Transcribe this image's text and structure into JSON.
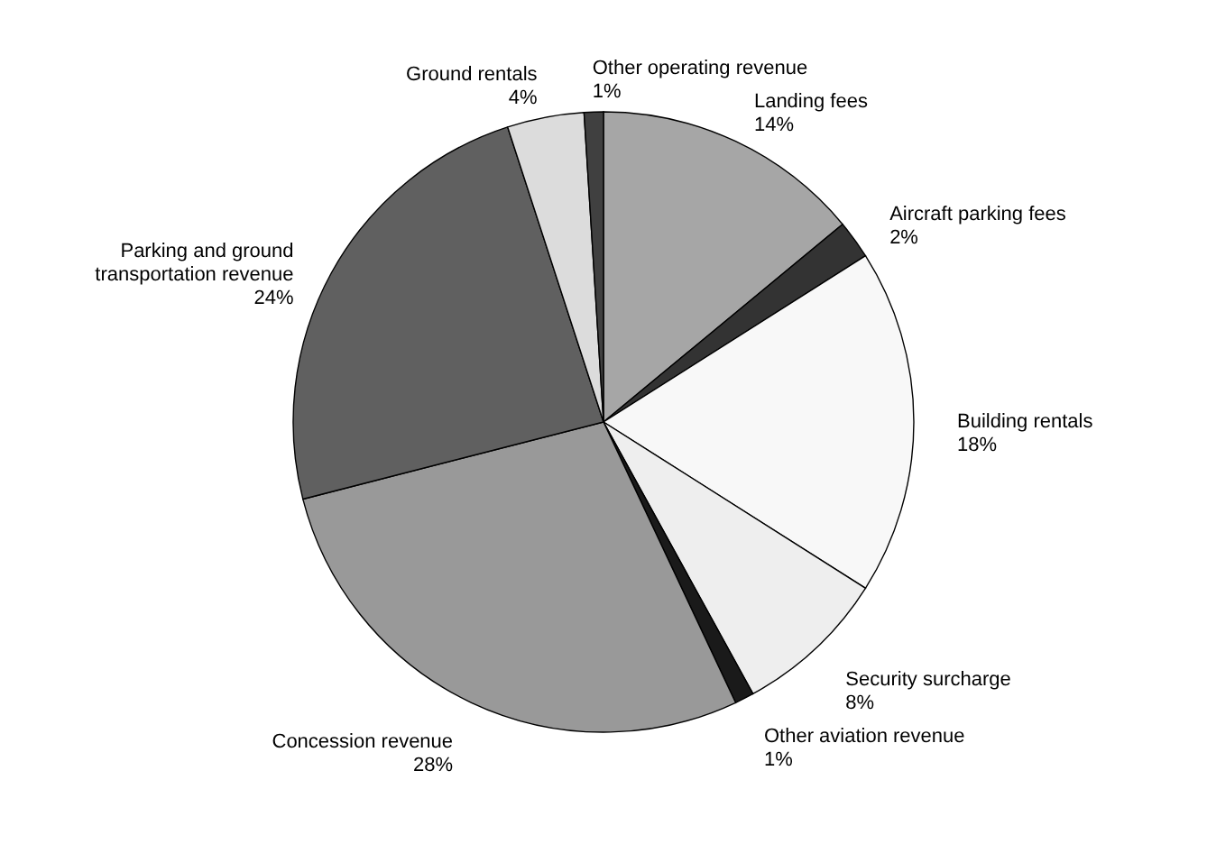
{
  "chart_data": {
    "type": "pie",
    "categories": [
      "Landing fees",
      "Aircraft parking fees",
      "Building rentals",
      "Security surcharge",
      "Other aviation revenue",
      "Concession revenue",
      "Parking and ground transportation revenue",
      "Ground rentals",
      "Other operating revenue"
    ],
    "values": [
      14,
      2,
      18,
      8,
      1,
      28,
      24,
      4,
      1
    ],
    "value_labels": [
      "14%",
      "2%",
      "18%",
      "8%",
      "1%",
      "28%",
      "24%",
      "4%",
      "1%"
    ],
    "colors": [
      "#a6a6a6",
      "#333333",
      "#f8f8f8",
      "#eeeeee",
      "#1a1a1a",
      "#999999",
      "#606060",
      "#dcdcdc",
      "#404040"
    ],
    "legend": false
  }
}
